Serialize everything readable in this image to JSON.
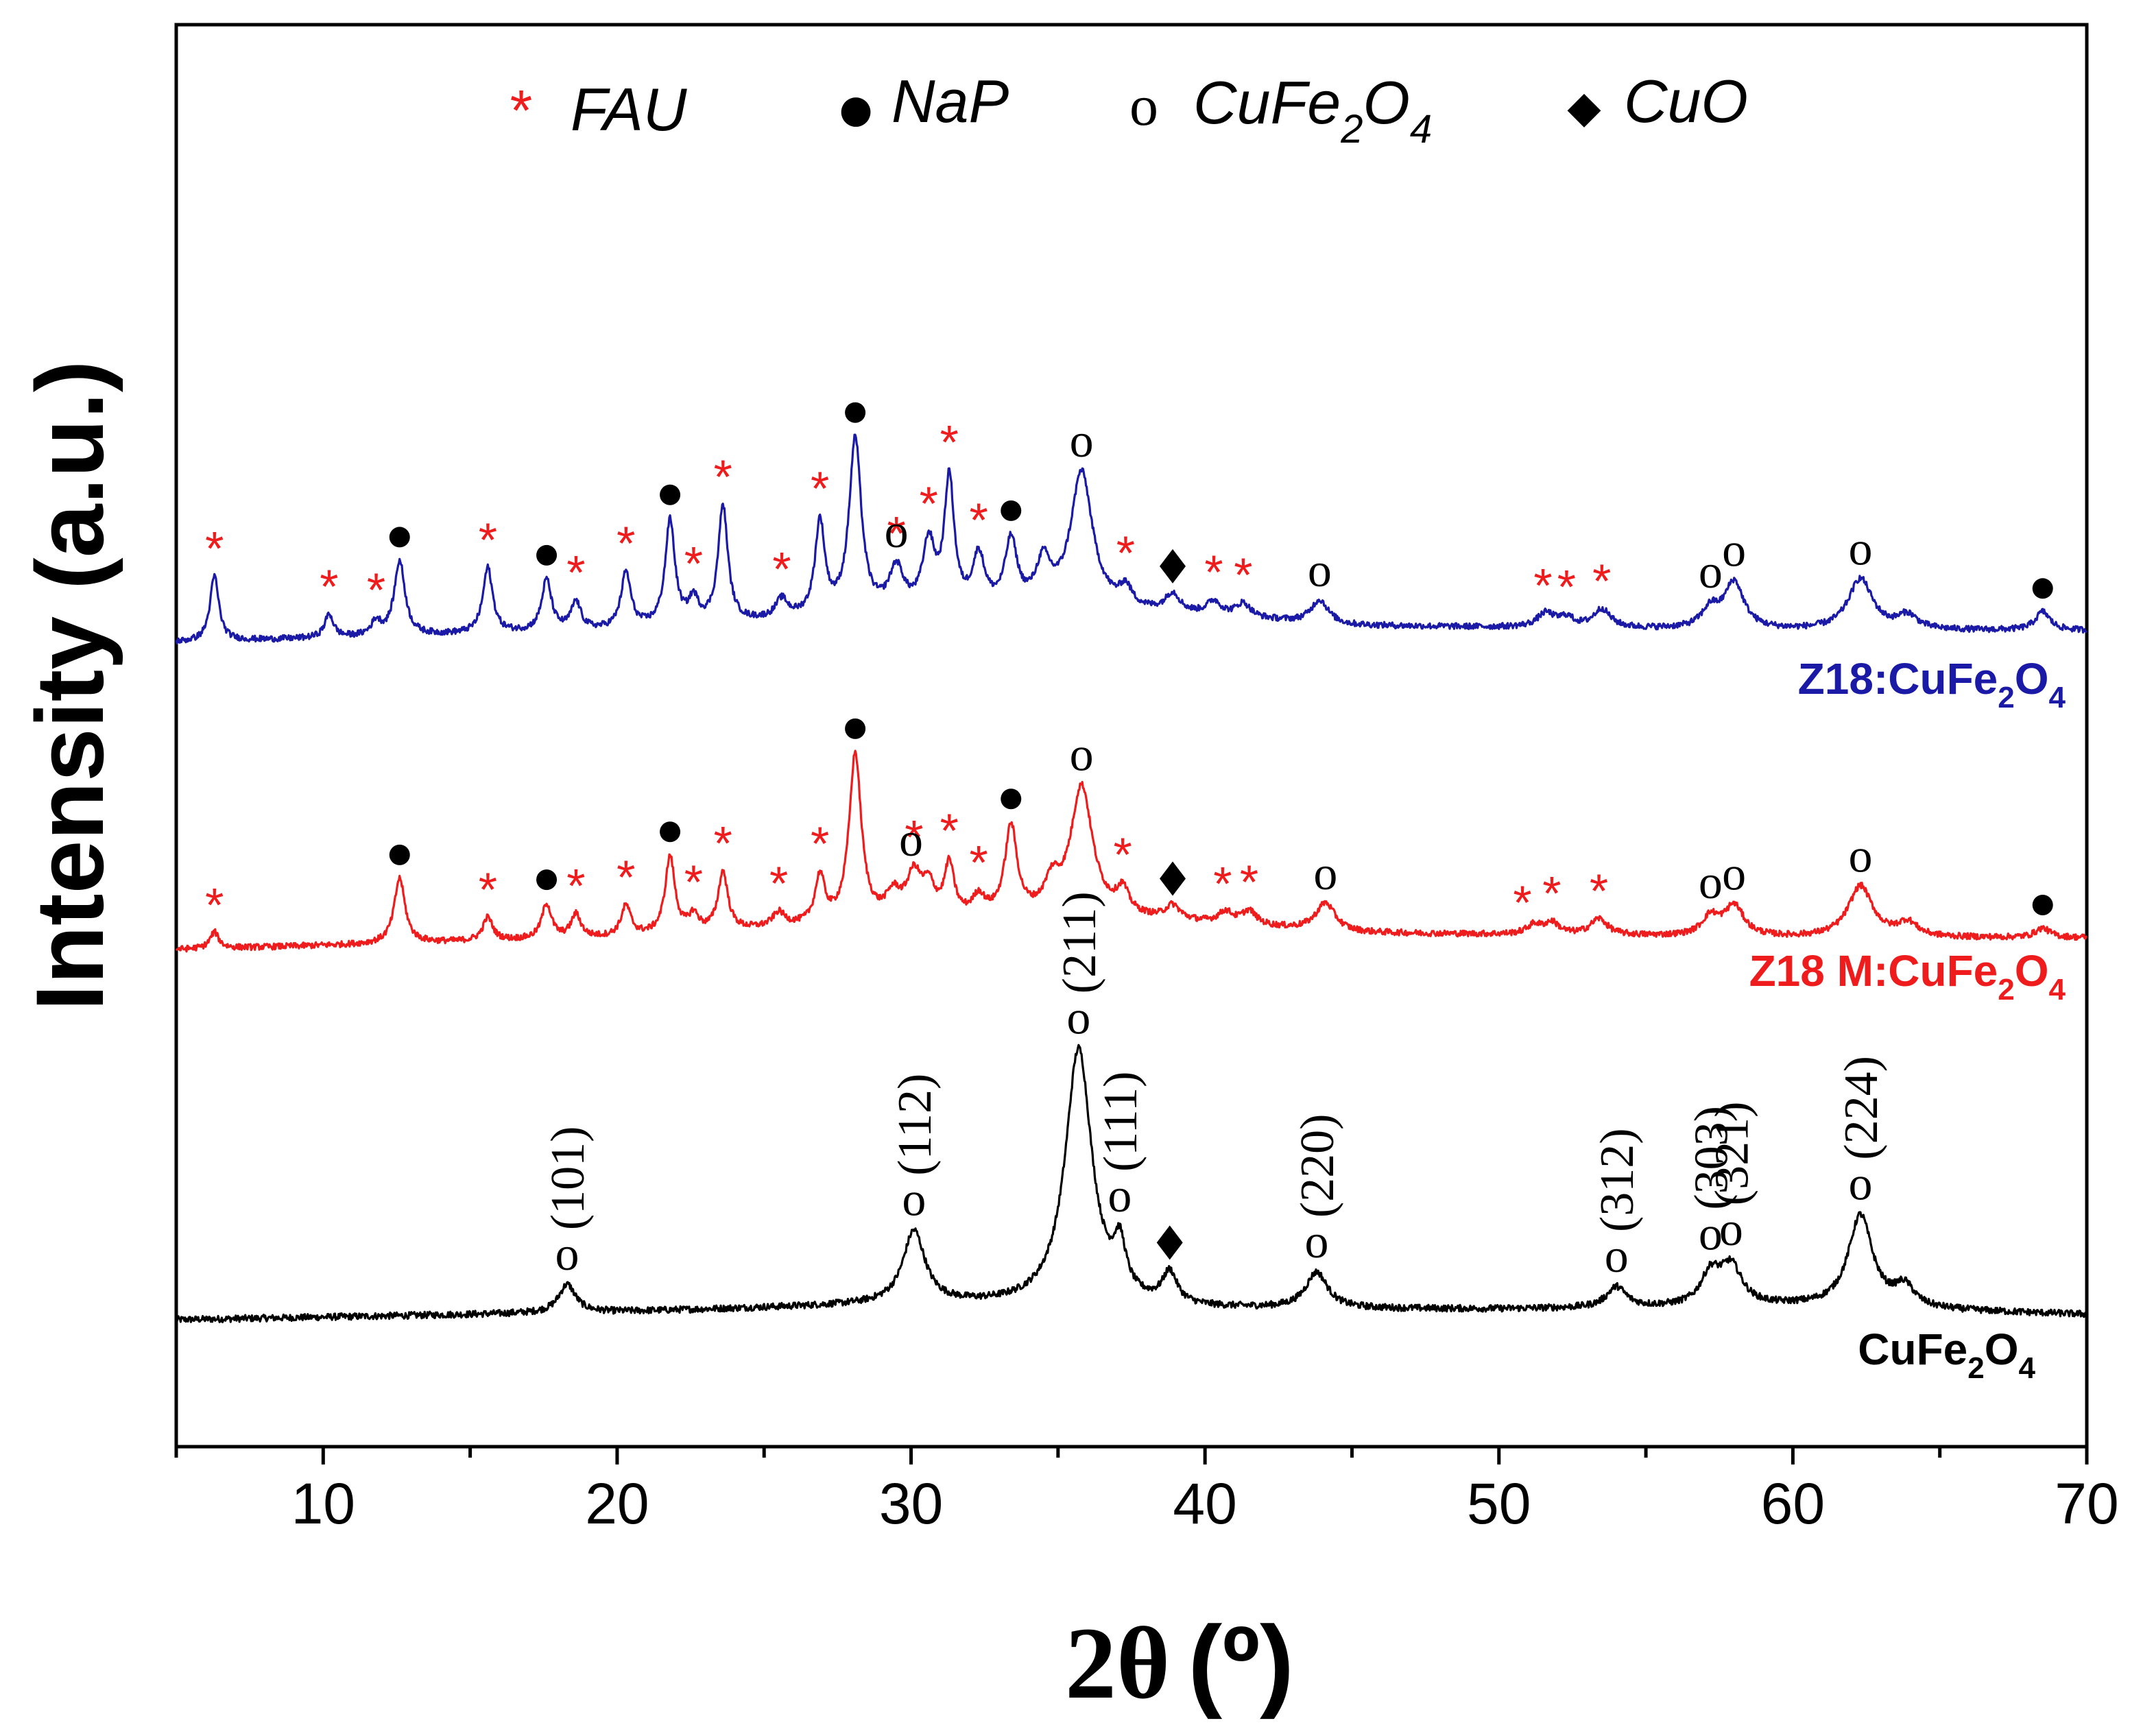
{
  "chart_data": {
    "type": "line",
    "title": "",
    "xlabel_prefix": "2θ",
    "xlabel_unit": "(º)",
    "ylabel": "Intensity (a.u.)",
    "xlim": [
      5,
      70
    ],
    "xticks": [
      "10",
      "20",
      "30",
      "40",
      "50",
      "60",
      "70"
    ],
    "legend": {
      "position": "top-center",
      "items": [
        {
          "key": "fau",
          "symbol": "*",
          "label": "FAU",
          "color": "#ee1c1c"
        },
        {
          "key": "nap",
          "symbol": "●",
          "label": "NaP",
          "color": "#000000"
        },
        {
          "key": "cufe",
          "symbol": "o",
          "label": "CuFe",
          "sub1": "2",
          "mid": "O",
          "sub2": "4",
          "color": "#000000"
        },
        {
          "key": "cuo",
          "symbol": "◆",
          "label": "CuO",
          "color": "#000000"
        }
      ]
    },
    "series": [
      {
        "name": "CuFe2O4",
        "label_main": "CuFe",
        "label_sub1": "2",
        "label_mid": "O",
        "label_sub2": "4",
        "color": "#000000",
        "baseline": [
          [
            5,
            0
          ],
          [
            20,
            3
          ],
          [
            30,
            6
          ],
          [
            40,
            4
          ],
          [
            50,
            4
          ],
          [
            60,
            5
          ],
          [
            70,
            2
          ]
        ],
        "peaks": [
          [
            18.3,
            11,
            0.35
          ],
          [
            30.1,
            28,
            0.45
          ],
          [
            35.7,
            100,
            0.55
          ],
          [
            37.1,
            18,
            0.25
          ],
          [
            38.8,
            12,
            0.3
          ],
          [
            43.8,
            14,
            0.45
          ],
          [
            54.0,
            8,
            0.4
          ],
          [
            57.2,
            12,
            0.4
          ],
          [
            57.9,
            15,
            0.45
          ],
          [
            62.3,
            36,
            0.5
          ],
          [
            63.8,
            8,
            0.4
          ]
        ],
        "annotations": [
          {
            "x": 18.3,
            "y": 11,
            "symbol": "o",
            "hkl": "(101)"
          },
          {
            "x": 30.1,
            "y": 28,
            "symbol": "o",
            "hkl": "(112)"
          },
          {
            "x": 35.7,
            "y": 100,
            "symbol": "o",
            "hkl": "(211)"
          },
          {
            "x": 37.1,
            "y": 18,
            "symbol": "o",
            "hkl": "(111)"
          },
          {
            "x": 38.8,
            "y": 12,
            "symbol": "◆",
            "hkl": ""
          },
          {
            "x": 43.8,
            "y": 14,
            "symbol": "o",
            "hkl": "(220)"
          },
          {
            "x": 54.0,
            "y": 8,
            "symbol": "o",
            "hkl": "(312)"
          },
          {
            "x": 57.2,
            "y": 12,
            "symbol": "o",
            "hkl": "(303)"
          },
          {
            "x": 57.9,
            "y": 15,
            "symbol": "o",
            "hkl": "(321)"
          },
          {
            "x": 62.3,
            "y": 36,
            "symbol": "o",
            "hkl": "(224)"
          }
        ]
      },
      {
        "name": "Z18 M:CuFe2O4",
        "label_main": "Z18 M:CuFe",
        "label_sub1": "2",
        "label_mid": "O",
        "label_sub2": "4",
        "color": "#ee1c1c",
        "baseline": [
          [
            5,
            0
          ],
          [
            20,
            5
          ],
          [
            30,
            12
          ],
          [
            36,
            14
          ],
          [
            45,
            7
          ],
          [
            60,
            5
          ],
          [
            70,
            5
          ]
        ],
        "peaks": [
          [
            6.3,
            7,
            0.18
          ],
          [
            12.6,
            28,
            0.22
          ],
          [
            15.6,
            10,
            0.2
          ],
          [
            17.6,
            15,
            0.2
          ],
          [
            18.6,
            10,
            0.2
          ],
          [
            20.3,
            13,
            0.2
          ],
          [
            21.8,
            33,
            0.2
          ],
          [
            22.6,
            7,
            0.2
          ],
          [
            23.6,
            25,
            0.2
          ],
          [
            25.5,
            6,
            0.25
          ],
          [
            26.9,
            20,
            0.2
          ],
          [
            28.1,
            72,
            0.25
          ],
          [
            29.4,
            10,
            0.3
          ],
          [
            30.1,
            18,
            0.3
          ],
          [
            30.6,
            12,
            0.25
          ],
          [
            31.3,
            22,
            0.2
          ],
          [
            32.3,
            8,
            0.25
          ],
          [
            33.4,
            38,
            0.25
          ],
          [
            34.8,
            12,
            0.3
          ],
          [
            35.8,
            55,
            0.45
          ],
          [
            37.2,
            10,
            0.25
          ],
          [
            38.9,
            6,
            0.3
          ],
          [
            40.7,
            5,
            0.3
          ],
          [
            41.5,
            6,
            0.3
          ],
          [
            44.1,
            12,
            0.4
          ],
          [
            51.2,
            4,
            0.3
          ],
          [
            51.8,
            5,
            0.3
          ],
          [
            53.4,
            7,
            0.35
          ],
          [
            57.2,
            8,
            0.35
          ],
          [
            58.0,
            13,
            0.4
          ],
          [
            62.3,
            22,
            0.5
          ],
          [
            63.9,
            6,
            0.4
          ],
          [
            68.5,
            4,
            0.3
          ]
        ],
        "annotations": [
          {
            "x": 6.3,
            "y": 7,
            "symbol": "*"
          },
          {
            "x": 12.6,
            "y": 28,
            "symbol": "●"
          },
          {
            "x": 15.6,
            "y": 10,
            "symbol": "*"
          },
          {
            "x": 17.6,
            "y": 15,
            "symbol": "●"
          },
          {
            "x": 18.6,
            "y": 10,
            "symbol": "*"
          },
          {
            "x": 20.3,
            "y": 13,
            "symbol": "*"
          },
          {
            "x": 21.8,
            "y": 33,
            "symbol": "●"
          },
          {
            "x": 22.6,
            "y": 7,
            "symbol": "*"
          },
          {
            "x": 23.6,
            "y": 25,
            "symbol": "*"
          },
          {
            "x": 25.5,
            "y": 6,
            "symbol": "*"
          },
          {
            "x": 26.9,
            "y": 20,
            "symbol": "*"
          },
          {
            "x": 28.1,
            "y": 72,
            "symbol": "●"
          },
          {
            "x": 30.1,
            "y": 30,
            "symbol": "*"
          },
          {
            "x": 30.0,
            "y": 38,
            "symbol": "o"
          },
          {
            "x": 31.3,
            "y": 22,
            "symbol": "*"
          },
          {
            "x": 32.3,
            "y": 8,
            "symbol": "*"
          },
          {
            "x": 33.4,
            "y": 38,
            "symbol": "●"
          },
          {
            "x": 35.8,
            "y": 57,
            "symbol": "o"
          },
          {
            "x": 37.2,
            "y": 10,
            "symbol": "*"
          },
          {
            "x": 38.9,
            "y": 6,
            "symbol": "◆"
          },
          {
            "x": 40.6,
            "y": 5,
            "symbol": "*"
          },
          {
            "x": 41.5,
            "y": 6,
            "symbol": "*"
          },
          {
            "x": 44.1,
            "y": 12,
            "symbol": "o"
          },
          {
            "x": 50.8,
            "y": 4,
            "symbol": "*"
          },
          {
            "x": 51.8,
            "y": 5,
            "symbol": "*"
          },
          {
            "x": 53.4,
            "y": 7,
            "symbol": "*"
          },
          {
            "x": 57.2,
            "y": 8,
            "symbol": "o"
          },
          {
            "x": 58.0,
            "y": 13,
            "symbol": "o"
          },
          {
            "x": 62.3,
            "y": 22,
            "symbol": "o"
          },
          {
            "x": 68.5,
            "y": 4,
            "symbol": "●"
          }
        ]
      },
      {
        "name": "Z18:CuFe2O4",
        "label_main": "Z18:CuFe",
        "label_sub1": "2",
        "label_mid": "O",
        "label_sub2": "4",
        "color": "#1a1aa6",
        "baseline": [
          [
            5,
            0
          ],
          [
            20,
            5
          ],
          [
            30,
            12
          ],
          [
            36,
            14
          ],
          [
            45,
            7
          ],
          [
            60,
            5
          ],
          [
            70,
            5
          ]
        ],
        "peaks": [
          [
            6.3,
            28,
            0.18
          ],
          [
            10.2,
            10,
            0.18
          ],
          [
            11.8,
            6,
            0.2
          ],
          [
            12.6,
            32,
            0.22
          ],
          [
            15.6,
            28,
            0.2
          ],
          [
            17.6,
            22,
            0.2
          ],
          [
            18.6,
            12,
            0.2
          ],
          [
            20.3,
            24,
            0.2
          ],
          [
            21.8,
            45,
            0.2
          ],
          [
            22.6,
            10,
            0.2
          ],
          [
            23.6,
            50,
            0.2
          ],
          [
            25.6,
            8,
            0.25
          ],
          [
            26.9,
            40,
            0.2
          ],
          [
            28.1,
            75,
            0.25
          ],
          [
            29.5,
            18,
            0.3
          ],
          [
            30.6,
            28,
            0.25
          ],
          [
            31.3,
            55,
            0.2
          ],
          [
            32.3,
            22,
            0.25
          ],
          [
            33.4,
            28,
            0.25
          ],
          [
            34.5,
            18,
            0.3
          ],
          [
            35.8,
            58,
            0.45
          ],
          [
            37.3,
            8,
            0.25
          ],
          [
            38.9,
            8,
            0.3
          ],
          [
            40.3,
            6,
            0.3
          ],
          [
            41.3,
            6,
            0.3
          ],
          [
            43.9,
            10,
            0.35
          ],
          [
            51.6,
            6,
            0.35
          ],
          [
            52.3,
            4,
            0.3
          ],
          [
            53.5,
            8,
            0.35
          ],
          [
            57.2,
            8,
            0.35
          ],
          [
            58.0,
            20,
            0.4
          ],
          [
            62.3,
            22,
            0.5
          ],
          [
            63.9,
            6,
            0.4
          ],
          [
            68.5,
            8,
            0.3
          ]
        ],
        "annotations": [
          {
            "x": 6.3,
            "y": 28,
            "symbol": "*"
          },
          {
            "x": 10.2,
            "y": 10,
            "symbol": "*"
          },
          {
            "x": 11.8,
            "y": 6,
            "symbol": "*"
          },
          {
            "x": 12.6,
            "y": 32,
            "symbol": "●"
          },
          {
            "x": 15.6,
            "y": 28,
            "symbol": "*"
          },
          {
            "x": 17.6,
            "y": 22,
            "symbol": "●"
          },
          {
            "x": 18.6,
            "y": 12,
            "symbol": "*"
          },
          {
            "x": 20.3,
            "y": 24,
            "symbol": "*"
          },
          {
            "x": 21.8,
            "y": 45,
            "symbol": "●"
          },
          {
            "x": 22.6,
            "y": 10,
            "symbol": "*"
          },
          {
            "x": 23.6,
            "y": 50,
            "symbol": "*"
          },
          {
            "x": 25.6,
            "y": 8,
            "symbol": "*"
          },
          {
            "x": 26.9,
            "y": 40,
            "symbol": "*"
          },
          {
            "x": 28.1,
            "y": 75,
            "symbol": "●"
          },
          {
            "x": 29.5,
            "y": 22,
            "symbol": "*"
          },
          {
            "x": 29.5,
            "y": 32,
            "symbol": "o"
          },
          {
            "x": 30.6,
            "y": 28,
            "symbol": "*"
          },
          {
            "x": 31.3,
            "y": 55,
            "symbol": "*"
          },
          {
            "x": 32.3,
            "y": 22,
            "symbol": "*"
          },
          {
            "x": 33.4,
            "y": 28,
            "symbol": "●"
          },
          {
            "x": 35.8,
            "y": 58,
            "symbol": "o"
          },
          {
            "x": 37.3,
            "y": 8,
            "symbol": "*"
          },
          {
            "x": 38.9,
            "y": 8,
            "symbol": "◆"
          },
          {
            "x": 40.3,
            "y": 6,
            "symbol": "*"
          },
          {
            "x": 41.3,
            "y": 6,
            "symbol": "*"
          },
          {
            "x": 43.9,
            "y": 10,
            "symbol": "o"
          },
          {
            "x": 51.5,
            "y": 6,
            "symbol": "*"
          },
          {
            "x": 52.3,
            "y": 6,
            "symbol": "*"
          },
          {
            "x": 53.5,
            "y": 8,
            "symbol": "*"
          },
          {
            "x": 57.2,
            "y": 8,
            "symbol": "o"
          },
          {
            "x": 58.0,
            "y": 20,
            "symbol": "o"
          },
          {
            "x": 62.3,
            "y": 22,
            "symbol": "o"
          },
          {
            "x": 68.5,
            "y": 8,
            "symbol": "●"
          }
        ]
      }
    ]
  }
}
